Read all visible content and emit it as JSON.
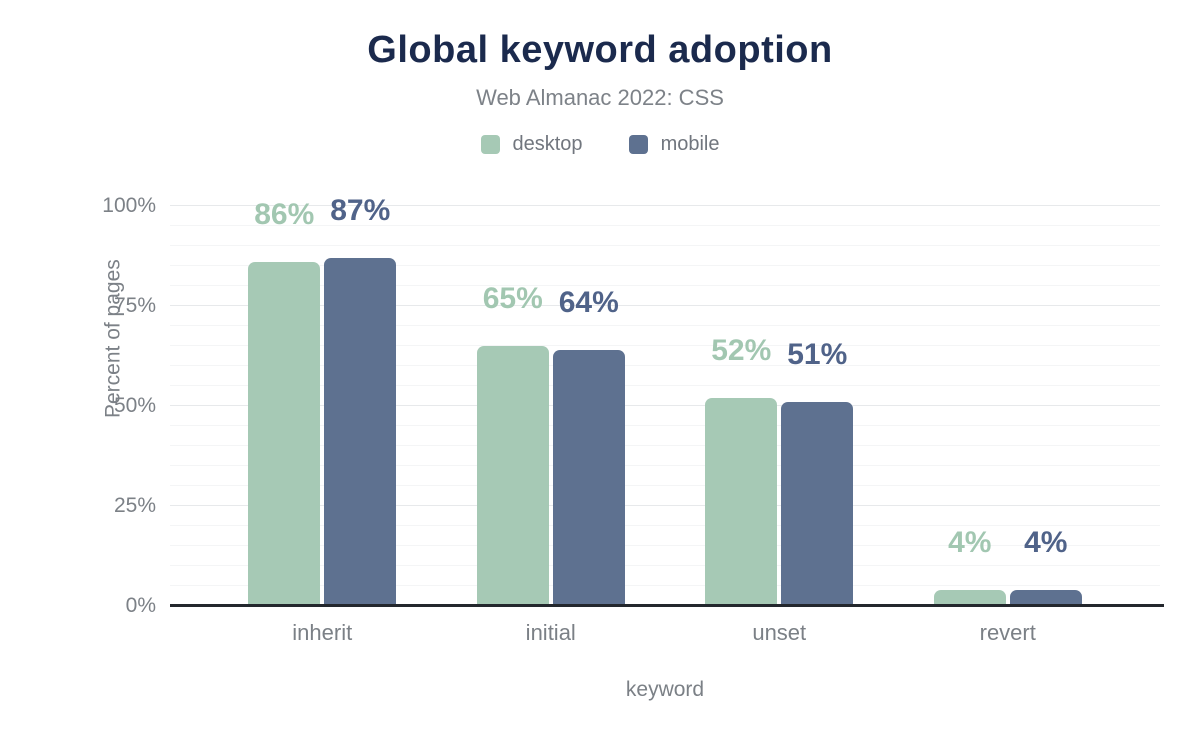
{
  "header": {
    "title": "Global keyword adoption",
    "subtitle": "Web Almanac 2022: CSS"
  },
  "chart_data": {
    "type": "bar",
    "title": "Global keyword adoption",
    "subtitle": "Web Almanac 2022: CSS",
    "categories": [
      "inherit",
      "initial",
      "unset",
      "revert"
    ],
    "series": [
      {
        "name": "desktop",
        "values": [
          86,
          65,
          52,
          4
        ],
        "color": "#a6c9b5",
        "label_color": "#a2c7b1"
      },
      {
        "name": "mobile",
        "values": [
          87,
          64,
          51,
          4
        ],
        "color": "#5e7190",
        "label_color": "#506389"
      }
    ],
    "xlabel": "keyword",
    "ylabel": "Percent of pages",
    "ylim": [
      0,
      100
    ],
    "yticks": [
      0,
      25,
      50,
      75,
      100
    ],
    "ytick_format": "{v}%",
    "value_label_format": "{v}%",
    "minor_grid_step": 5,
    "grid": true,
    "legend_position": "top",
    "title_color": "#1b2a4d",
    "axis_line_color": "#23272d"
  }
}
